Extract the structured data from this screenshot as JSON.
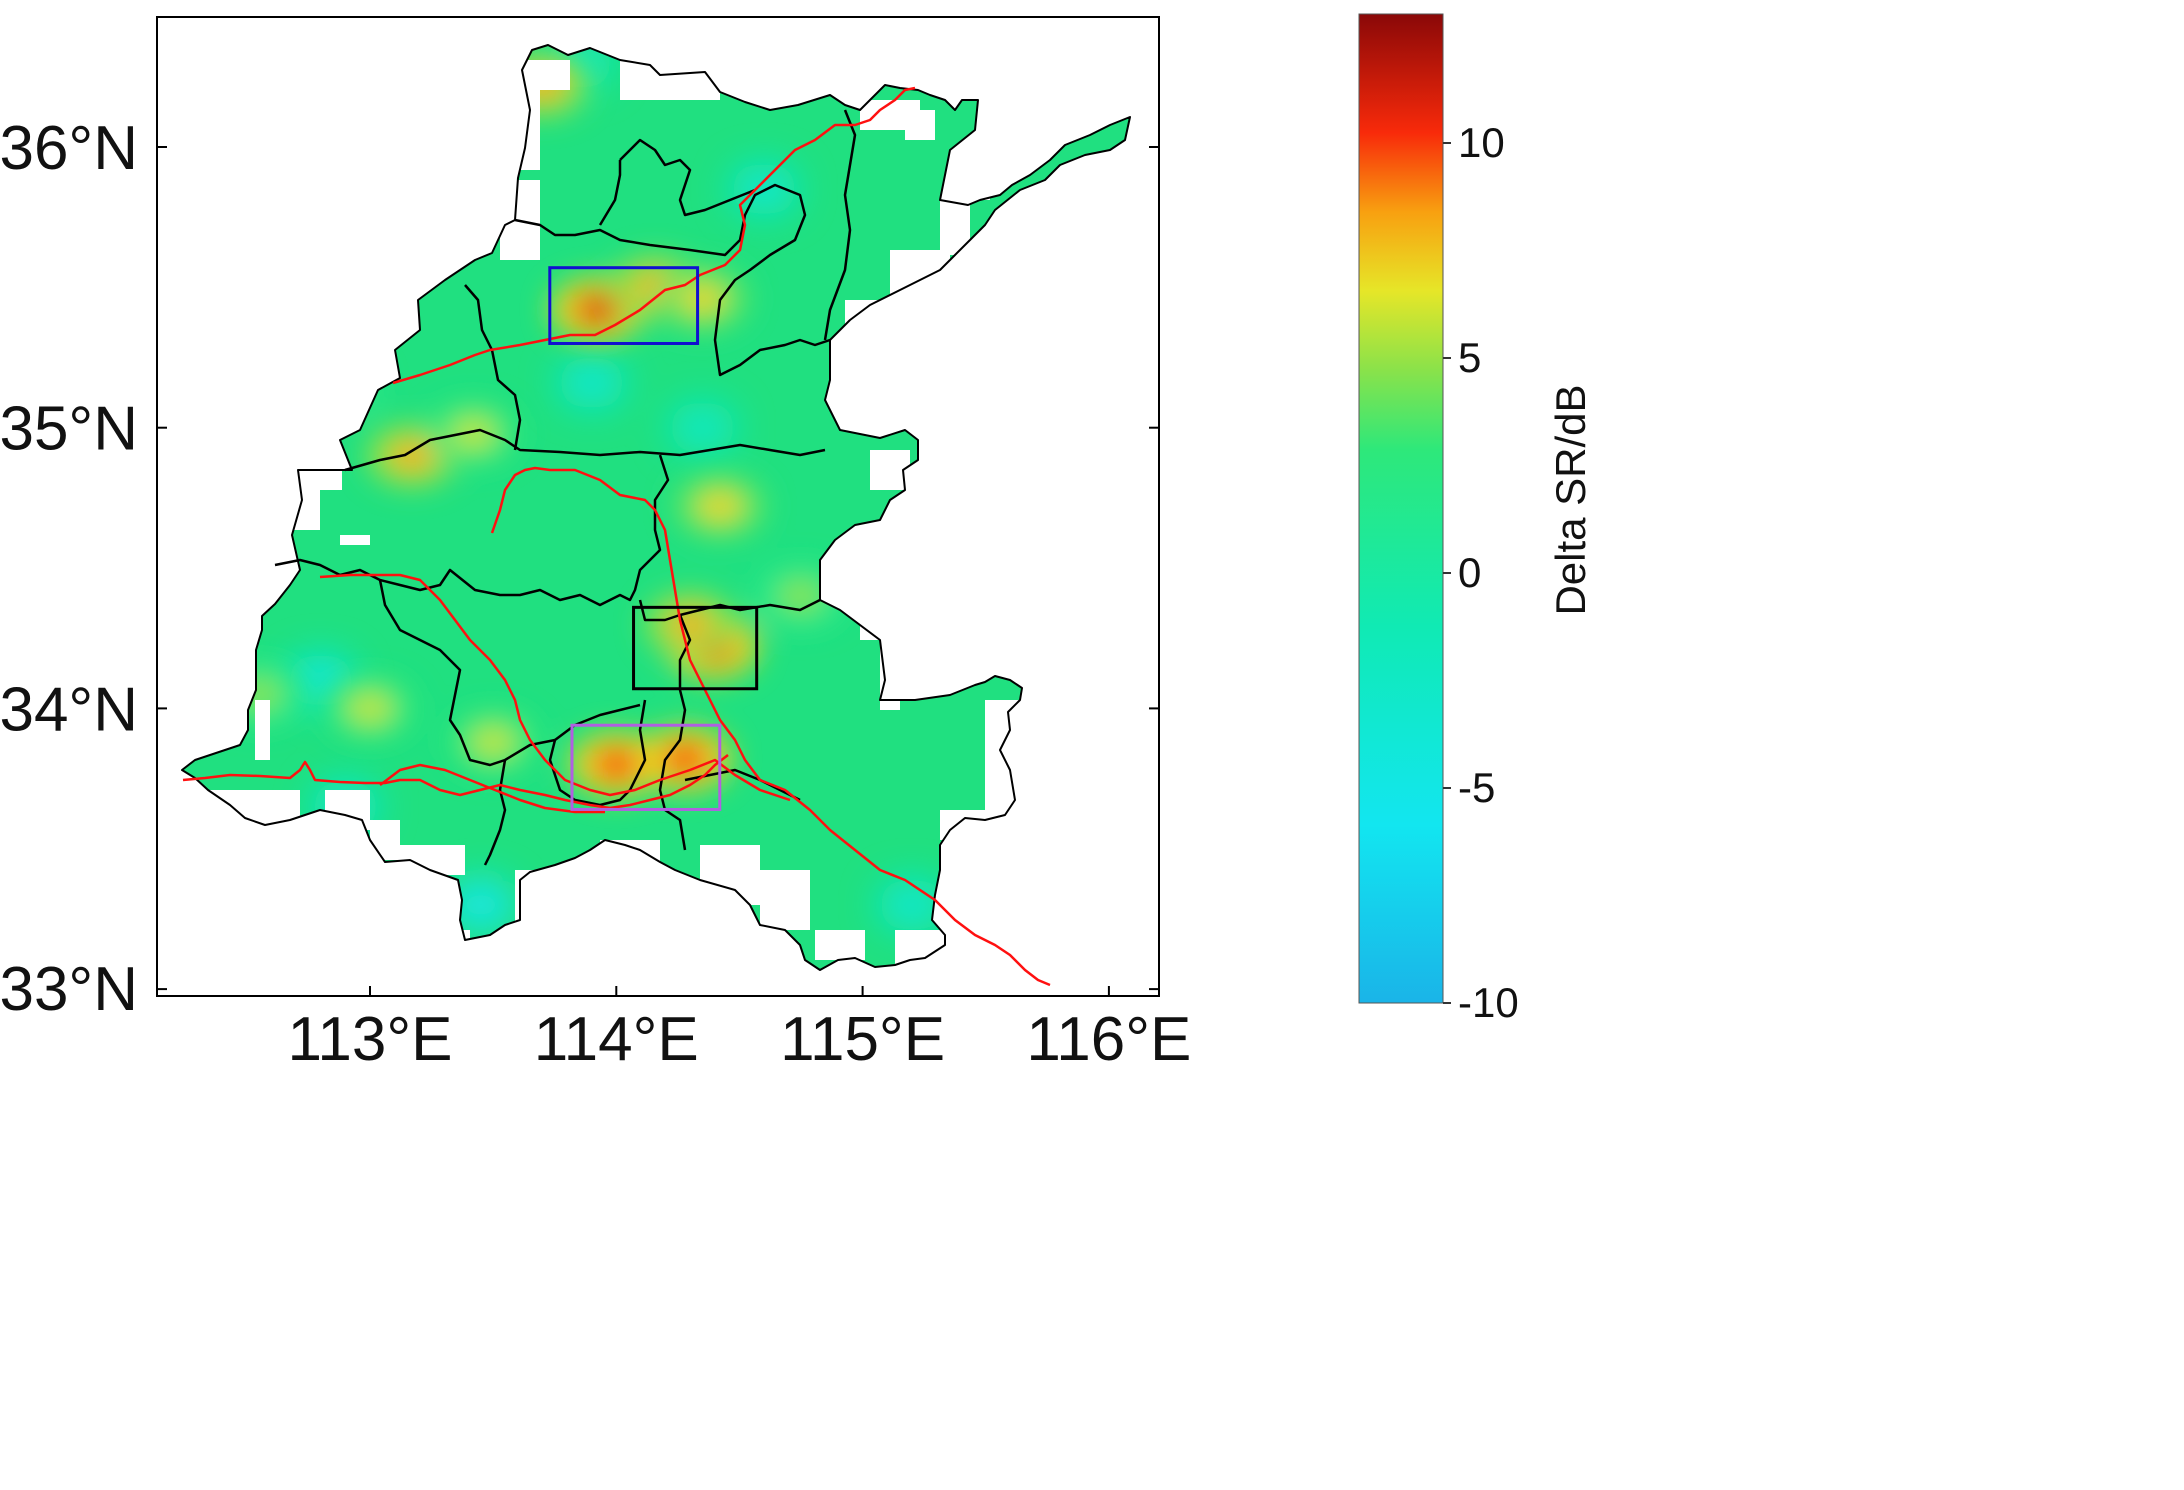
{
  "map": {
    "lat_labels": [
      "36°N",
      "35°N",
      "34°N",
      "33°N"
    ],
    "lon_labels": [
      "113°E",
      "114°E",
      "115°E",
      "116°E"
    ],
    "lat_values": [
      36,
      35,
      34,
      33
    ],
    "lon_values": [
      113,
      114,
      115,
      116
    ],
    "extent": {
      "lon": [
        112.15,
        116.2
      ],
      "lat": [
        32.97,
        36.46
      ]
    },
    "region_fill": "#20e080",
    "hotspots": [
      {
        "lon": 113.92,
        "lat": 35.42,
        "value": 11
      },
      {
        "lon": 114.16,
        "lat": 35.5,
        "value": 8
      },
      {
        "lon": 114.35,
        "lat": 35.46,
        "value": 7
      },
      {
        "lon": 113.17,
        "lat": 34.9,
        "value": 8
      },
      {
        "lon": 113.42,
        "lat": 34.98,
        "value": 6
      },
      {
        "lon": 112.85,
        "lat": 35.15,
        "value": 5
      },
      {
        "lon": 114.39,
        "lat": 34.22,
        "value": 11
      },
      {
        "lon": 114.3,
        "lat": 34.3,
        "value": 8
      },
      {
        "lon": 114.0,
        "lat": 33.8,
        "value": 10
      },
      {
        "lon": 114.28,
        "lat": 33.82,
        "value": 10
      },
      {
        "lon": 113.5,
        "lat": 33.88,
        "value": 6
      },
      {
        "lon": 114.42,
        "lat": 34.72,
        "value": 7
      },
      {
        "lon": 112.55,
        "lat": 34.05,
        "value": 5
      },
      {
        "lon": 113.0,
        "lat": 34.0,
        "value": 6
      },
      {
        "lon": 114.75,
        "lat": 34.4,
        "value": 5
      },
      {
        "lon": 113.7,
        "lat": 36.22,
        "value": 8
      }
    ],
    "coldspots": [
      {
        "lon": 113.9,
        "lat": 35.16,
        "value": -3
      },
      {
        "lon": 114.35,
        "lat": 35.0,
        "value": -2
      },
      {
        "lon": 112.8,
        "lat": 34.1,
        "value": -4
      },
      {
        "lon": 113.45,
        "lat": 33.3,
        "value": -5
      },
      {
        "lon": 112.9,
        "lat": 33.65,
        "value": -3
      },
      {
        "lon": 114.6,
        "lat": 35.85,
        "value": -3
      },
      {
        "lon": 115.2,
        "lat": 33.3,
        "value": -3
      },
      {
        "lon": 113.85,
        "lat": 36.3,
        "value": -2
      }
    ],
    "boxes": [
      {
        "name": "blue",
        "color": "#1010d0",
        "lon": [
          113.73,
          114.33
        ],
        "lat": [
          35.3,
          35.57
        ]
      },
      {
        "name": "black",
        "color": "#000000",
        "lon": [
          114.07,
          114.57
        ],
        "lat": [
          34.07,
          34.36
        ]
      },
      {
        "name": "violet",
        "color": "#b060e0",
        "lon": [
          113.82,
          114.42
        ],
        "lat": [
          33.64,
          33.94
        ]
      }
    ]
  },
  "colorbar": {
    "title": "Delta SR/dB",
    "tick_labels": [
      "10",
      "5",
      "0",
      "-5",
      "-10"
    ],
    "tick_values": [
      10,
      5,
      0,
      -5,
      -10
    ],
    "range": [
      -10,
      13
    ]
  }
}
